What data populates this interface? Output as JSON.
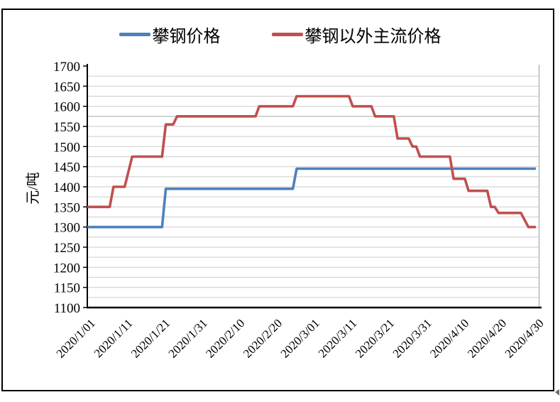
{
  "y_axis_title": "元/吨",
  "legend": {
    "items": [
      {
        "label": "攀钢价格",
        "color": "#4F81BD"
      },
      {
        "label": "攀钢以外主流价格",
        "color": "#C0504D"
      }
    ]
  },
  "chart_data": {
    "type": "line",
    "title": "",
    "xlabel": "",
    "ylabel": "元/吨",
    "ylim": [
      1100,
      1700
    ],
    "y_tick_interval": 50,
    "y_minor_grid_interval": 25,
    "grid": "horizontal gridlines every 25 units",
    "legend_position": "top-center",
    "x_unit": "daily dates, day 0 = 2020/1/01 through day 120 = 2020/4/30",
    "x_tick_days": [
      0,
      10,
      20,
      30,
      40,
      50,
      60,
      70,
      80,
      90,
      100,
      110,
      120
    ],
    "x_tick_labels": [
      "2020/1/01",
      "2020/1/11",
      "2020/1/21",
      "2020/1/31",
      "2020/2/10",
      "2020/2/20",
      "2020/3/01",
      "2020/3/11",
      "2020/3/21",
      "2020/3/31",
      "2020/4/10",
      "2020/4/20",
      "2020/4/30"
    ],
    "y_tick_labels": [
      "1100",
      "1150",
      "1200",
      "1250",
      "1300",
      "1350",
      "1400",
      "1450",
      "1500",
      "1550",
      "1600",
      "1650",
      "1700"
    ],
    "series": [
      {
        "name": "攀钢价格",
        "color": "#4F81BD",
        "segments": [
          {
            "from": "2020/1/01",
            "to": "2020/1/21",
            "day_start": 0,
            "day_end": 20,
            "value": 1300
          },
          {
            "from": "2020/1/22",
            "to": "2020/2/25",
            "day_start": 21,
            "day_end": 55,
            "value": 1395
          },
          {
            "from": "2020/2/26",
            "to": "2020/4/30",
            "day_start": 56,
            "day_end": 120,
            "value": 1445
          }
        ]
      },
      {
        "name": "攀钢以外主流价格",
        "color": "#C0504D",
        "segments": [
          {
            "from": "2020/1/01",
            "to": "2020/1/07",
            "day_start": 0,
            "day_end": 6,
            "value": 1350
          },
          {
            "from": "2020/1/08",
            "to": "2020/1/11",
            "day_start": 7,
            "day_end": 10,
            "value": 1400
          },
          {
            "from": "2020/1/13",
            "to": "2020/1/21",
            "day_start": 12,
            "day_end": 20,
            "value": 1475
          },
          {
            "from": "2020/1/22",
            "to": "2020/1/24",
            "day_start": 21,
            "day_end": 23,
            "value": 1555
          },
          {
            "from": "2020/1/25",
            "to": "2020/2/15",
            "day_start": 24,
            "day_end": 45,
            "value": 1575
          },
          {
            "from": "2020/2/16",
            "to": "2020/2/25",
            "day_start": 46,
            "day_end": 55,
            "value": 1600
          },
          {
            "from": "2020/2/26",
            "to": "2020/3/11",
            "day_start": 56,
            "day_end": 70,
            "value": 1625
          },
          {
            "from": "2020/3/12",
            "to": "2020/3/17",
            "day_start": 71,
            "day_end": 76,
            "value": 1600
          },
          {
            "from": "2020/3/18",
            "to": "2020/3/23",
            "day_start": 77,
            "day_end": 82,
            "value": 1575
          },
          {
            "from": "2020/3/24",
            "to": "2020/3/27",
            "day_start": 83,
            "day_end": 86,
            "value": 1520
          },
          {
            "from": "2020/3/28",
            "to": "2020/3/29",
            "day_start": 87,
            "day_end": 88,
            "value": 1500
          },
          {
            "from": "2020/3/30",
            "to": "2020/4/07",
            "day_start": 89,
            "day_end": 97,
            "value": 1475
          },
          {
            "from": "2020/4/08",
            "to": "2020/4/11",
            "day_start": 98,
            "day_end": 101,
            "value": 1420
          },
          {
            "from": "2020/4/12",
            "to": "2020/4/17",
            "day_start": 102,
            "day_end": 107,
            "value": 1390
          },
          {
            "from": "2020/4/18",
            "to": "2020/4/19",
            "day_start": 108,
            "day_end": 109,
            "value": 1350
          },
          {
            "from": "2020/4/20",
            "to": "2020/4/26",
            "day_start": 110,
            "day_end": 116,
            "value": 1335
          },
          {
            "from": "2020/4/28",
            "to": "2020/4/30",
            "day_start": 118,
            "day_end": 120,
            "value": 1300
          }
        ]
      }
    ],
    "colors": {
      "grid": "#D3D3D3",
      "grid_dark": "#B2B2B2",
      "grid_dark_line_value": 1575,
      "plot_right_border": "#9B9B9B",
      "axis": "#000000",
      "background": "#FFFFFF",
      "frame_border": "#000000"
    }
  }
}
